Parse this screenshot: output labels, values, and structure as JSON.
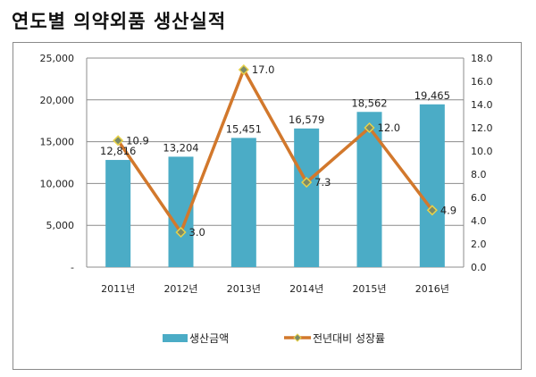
{
  "title": "연도별 의약외품 생산실적",
  "chart_data": {
    "type": "bar+line",
    "title": "연도별 의약외품 생산실적",
    "categories": [
      "2011년",
      "2012년",
      "2013년",
      "2014년",
      "2015년",
      "2016년"
    ],
    "series": [
      {
        "name": "생산금액",
        "type": "bar",
        "axis": "left",
        "color": "#4bacc6",
        "values": [
          12816,
          13204,
          15451,
          16579,
          18562,
          19465
        ],
        "labels": [
          "12,816",
          "13,204",
          "15,451",
          "16,579",
          "18,562",
          "19,465"
        ]
      },
      {
        "name": "전년대비 성장률",
        "type": "line",
        "axis": "right",
        "color": "#d2782c",
        "values": [
          10.9,
          3.0,
          17.0,
          7.3,
          12.0,
          4.9
        ],
        "labels": [
          "10.9",
          "3.0",
          "17.0",
          "7.3",
          "12.0",
          "4.9"
        ]
      }
    ],
    "left_axis": {
      "range": [
        0,
        25000
      ],
      "ticks": [
        "-",
        "5,000",
        "10,000",
        "15,000",
        "20,000",
        "25,000"
      ]
    },
    "right_axis": {
      "range": [
        0,
        18
      ],
      "ticks": [
        "0.0",
        "2.0",
        "4.0",
        "6.0",
        "8.0",
        "10.0",
        "12.0",
        "14.0",
        "16.0",
        "18.0"
      ]
    },
    "grid": true,
    "legend": "bottom"
  }
}
